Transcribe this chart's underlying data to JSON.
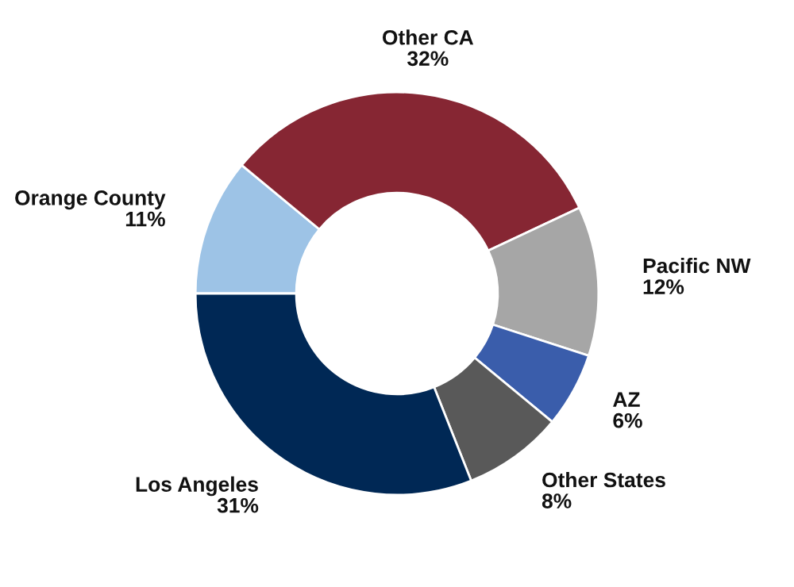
{
  "chart_data": {
    "type": "donut",
    "categories": [
      "Orange County",
      "Other CA",
      "Pacific NW",
      "AZ",
      "Other States",
      "Los Angeles"
    ],
    "values": [
      11,
      32,
      12,
      6,
      8,
      31
    ],
    "colors": [
      "#9dc3e6",
      "#862633",
      "#a6a6a6",
      "#3a5dab",
      "#595959",
      "#002855"
    ],
    "value_labels": [
      "11%",
      "32%",
      "12%",
      "6%",
      "8%",
      "31%"
    ],
    "legend": false
  }
}
